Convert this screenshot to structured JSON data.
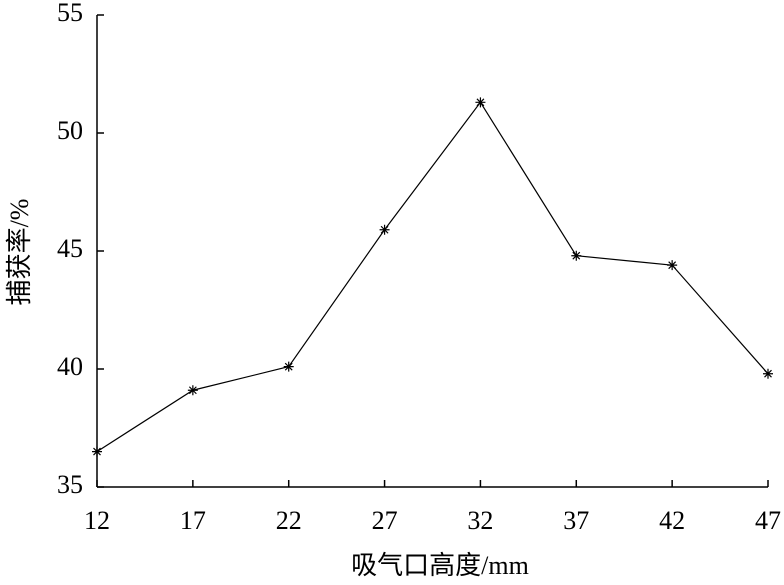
{
  "chart_data": {
    "type": "line",
    "xlabel": "吸气口高度/mm",
    "ylabel": "捕获率/%",
    "x": [
      12,
      17,
      22,
      27,
      32,
      37,
      42,
      47
    ],
    "values": [
      36.5,
      39.1,
      40.1,
      45.9,
      51.3,
      44.8,
      44.4,
      39.8
    ],
    "color": "#000000",
    "xlim": [
      12,
      47
    ],
    "xticks": [
      12,
      17,
      22,
      27,
      32,
      37,
      42,
      47
    ],
    "ylim": [
      35,
      55
    ],
    "yticks": [
      35,
      40,
      45,
      50,
      55
    ]
  }
}
